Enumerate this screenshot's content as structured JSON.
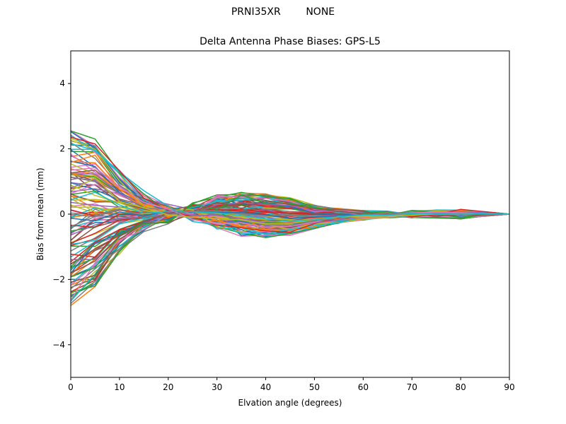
{
  "figure": {
    "suptitle": "PRNI35XR        NONE"
  },
  "chart_data": {
    "type": "line",
    "title": "Delta Antenna Phase Biases: GPS-L5",
    "xlabel": "Elvation angle (degrees)",
    "ylabel": "Bias from mean (mm)",
    "xlim": [
      0,
      90
    ],
    "ylim": [
      -5,
      5
    ],
    "x": [
      0,
      5,
      10,
      15,
      20,
      25,
      30,
      35,
      40,
      45,
      50,
      55,
      60,
      65,
      70,
      75,
      80,
      85,
      90
    ],
    "xticks": [
      0,
      10,
      20,
      30,
      40,
      50,
      60,
      70,
      80,
      90
    ],
    "yticks": [
      -4,
      -2,
      0,
      2,
      4
    ],
    "ytick_labels": [
      "−4",
      "−2",
      "0",
      "2",
      "4"
    ],
    "grid": false,
    "legend": "none",
    "n_series": 120,
    "envelope": {
      "upper": [
        2.55,
        2.3,
        1.6,
        1.0,
        0.75,
        0.75,
        0.75,
        0.72,
        0.65,
        0.5,
        0.3,
        0.18,
        0.15,
        0.12,
        0.12,
        0.15,
        0.15,
        0.08,
        0.0
      ],
      "lower": [
        -2.8,
        -2.25,
        -1.5,
        -0.95,
        -0.72,
        -0.62,
        -0.62,
        -0.68,
        -0.72,
        -0.65,
        -0.45,
        -0.3,
        -0.2,
        -0.18,
        -0.15,
        -0.15,
        -0.15,
        -0.08,
        0.0
      ]
    },
    "palette": [
      "#1f77b4",
      "#ff7f0e",
      "#2ca02c",
      "#d62728",
      "#9467bd",
      "#8c564b",
      "#e377c2",
      "#7f7f7f",
      "#bcbd22",
      "#17becf"
    ]
  }
}
